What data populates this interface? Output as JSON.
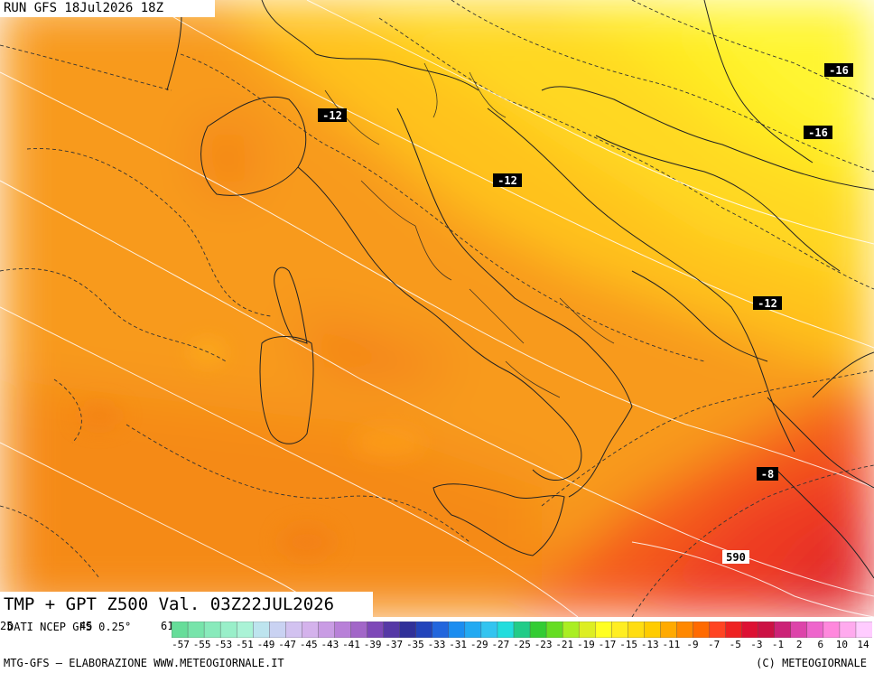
{
  "header": {
    "run_label": "RUN GFS 18Jul2026 18Z"
  },
  "title": "TMP + GPT Z500 Val. 03Z22JUL2026",
  "source_note": "DATI NCEP GFS 0.25°",
  "edge_labels": {
    "left1": "25",
    "left2": "45",
    "left3": "61"
  },
  "footer": {
    "left": "MTG-GFS – ELABORAZIONE WWW.METEOGIORNALE.IT",
    "right": "(C) METEOGIORNALE"
  },
  "map_labels": [
    {
      "text": "-16"
    },
    {
      "text": "-16"
    },
    {
      "text": "-12"
    },
    {
      "text": "-12"
    },
    {
      "text": "-12"
    },
    {
      "text": "-8"
    },
    {
      "text": "590"
    }
  ],
  "colors": {
    "yellow": "#ffff33",
    "orange": "#ff9900",
    "deep_orange": "#ff6a00",
    "red": "#f0302a"
  },
  "legend": {
    "ticks": [
      "-57",
      "-55",
      "-53",
      "-51",
      "-49",
      "-47",
      "-45",
      "-43",
      "-41",
      "-39",
      "-37",
      "-35",
      "-33",
      "-31",
      "-29",
      "-27",
      "-25",
      "-23",
      "-21",
      "-19",
      "-17",
      "-15",
      "-13",
      "-11",
      "-9",
      "-7",
      "-5",
      "-3",
      "-1",
      "2",
      "6",
      "10",
      "14"
    ],
    "colors": [
      "#66dd99",
      "#77e4aa",
      "#88eabb",
      "#99efc9",
      "#aaf3d6",
      "#bde4ee",
      "#c9d2f2",
      "#d2c2f0",
      "#d4b2ec",
      "#c99ce4",
      "#b880d8",
      "#a266c8",
      "#7e48b8",
      "#5638a6",
      "#303099",
      "#2244bb",
      "#2266dd",
      "#1b8df0",
      "#22aaf2",
      "#33c4f0",
      "#22dddd",
      "#22cc88",
      "#33cc33",
      "#66dd22",
      "#aaee22",
      "#ddee22",
      "#ffff22",
      "#ffee22",
      "#ffdd11",
      "#ffcc00",
      "#ffaa00",
      "#ff8800",
      "#ff6a00",
      "#ff4422",
      "#ee2222",
      "#dd1133",
      "#cc1144",
      "#cc2277",
      "#dd44aa",
      "#ee66cc",
      "#ff88dd",
      "#ffaaee",
      "#ffccff"
    ]
  }
}
